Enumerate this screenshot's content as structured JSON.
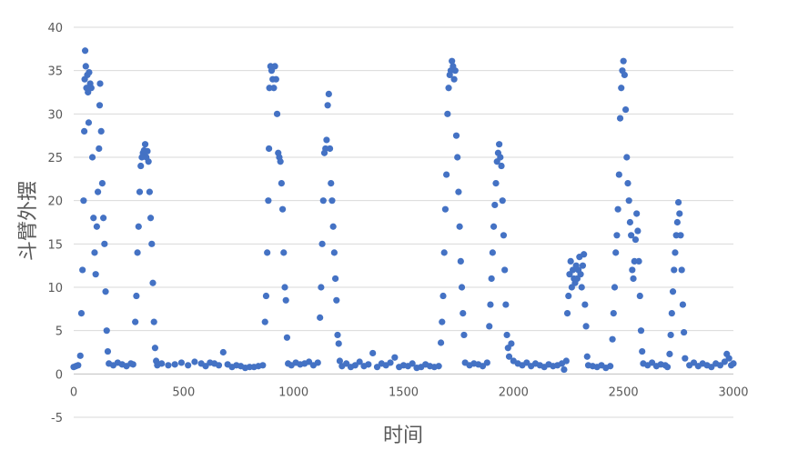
{
  "chart_data": {
    "type": "scatter",
    "title": "",
    "xlabel": "时间",
    "ylabel": "斗臂外摆",
    "xlim": [
      0,
      3000
    ],
    "ylim": [
      -5,
      40
    ],
    "x_ticks": [
      "0",
      "500",
      "1000",
      "1500",
      "2000",
      "2500",
      "3000"
    ],
    "y_ticks": [
      "-5",
      "0",
      "5",
      "10",
      "15",
      "20",
      "25",
      "30",
      "35",
      "40"
    ],
    "grid": true,
    "legend": "none",
    "marker_color": "#4472C4",
    "series": [
      {
        "points": [
          [
            0,
            0.8
          ],
          [
            10,
            0.9
          ],
          [
            20,
            1.0
          ],
          [
            30,
            2.1
          ],
          [
            35,
            7.0
          ],
          [
            40,
            12.0
          ],
          [
            45,
            20.0
          ],
          [
            48,
            28.0
          ],
          [
            50,
            34.0
          ],
          [
            52,
            37.3
          ],
          [
            55,
            35.5
          ],
          [
            58,
            33.0
          ],
          [
            62,
            34.5
          ],
          [
            65,
            32.5
          ],
          [
            68,
            29.0
          ],
          [
            70,
            34.8
          ],
          [
            75,
            33.5
          ],
          [
            80,
            33.0
          ],
          [
            85,
            25.0
          ],
          [
            90,
            18.0
          ],
          [
            95,
            14.0
          ],
          [
            100,
            11.5
          ],
          [
            105,
            17.0
          ],
          [
            110,
            21.0
          ],
          [
            115,
            26.0
          ],
          [
            118,
            31.0
          ],
          [
            120,
            33.5
          ],
          [
            125,
            28.0
          ],
          [
            130,
            22.0
          ],
          [
            135,
            18.0
          ],
          [
            140,
            15.0
          ],
          [
            145,
            9.5
          ],
          [
            150,
            5.0
          ],
          [
            155,
            2.6
          ],
          [
            160,
            1.2
          ],
          [
            180,
            1.0
          ],
          [
            200,
            1.3
          ],
          [
            220,
            1.1
          ],
          [
            240,
            0.9
          ],
          [
            260,
            1.2
          ],
          [
            270,
            1.1
          ],
          [
            280,
            6.0
          ],
          [
            285,
            9.0
          ],
          [
            290,
            14.0
          ],
          [
            295,
            17.0
          ],
          [
            300,
            21.0
          ],
          [
            305,
            24.0
          ],
          [
            310,
            25.0
          ],
          [
            315,
            25.5
          ],
          [
            320,
            25.8
          ],
          [
            325,
            26.5
          ],
          [
            330,
            25.0
          ],
          [
            335,
            25.7
          ],
          [
            340,
            24.5
          ],
          [
            345,
            21.0
          ],
          [
            350,
            18.0
          ],
          [
            355,
            15.0
          ],
          [
            360,
            10.5
          ],
          [
            365,
            6.0
          ],
          [
            370,
            3.0
          ],
          [
            375,
            1.5
          ],
          [
            380,
            1.0
          ],
          [
            400,
            1.2
          ],
          [
            430,
            1.0
          ],
          [
            460,
            1.1
          ],
          [
            490,
            1.3
          ],
          [
            520,
            1.0
          ],
          [
            550,
            1.4
          ],
          [
            580,
            1.2
          ],
          [
            600,
            0.9
          ],
          [
            620,
            1.3
          ],
          [
            640,
            1.2
          ],
          [
            660,
            1.0
          ],
          [
            680,
            2.5
          ],
          [
            700,
            1.1
          ],
          [
            720,
            0.8
          ],
          [
            740,
            1.0
          ],
          [
            760,
            0.9
          ],
          [
            780,
            0.7
          ],
          [
            800,
            0.8
          ],
          [
            820,
            0.8
          ],
          [
            840,
            0.9
          ],
          [
            860,
            1.0
          ],
          [
            870,
            6.0
          ],
          [
            875,
            9.0
          ],
          [
            880,
            14.0
          ],
          [
            885,
            20.0
          ],
          [
            888,
            26.0
          ],
          [
            890,
            33.0
          ],
          [
            895,
            35.5
          ],
          [
            900,
            35.0
          ],
          [
            905,
            34.0
          ],
          [
            910,
            33.0
          ],
          [
            915,
            35.5
          ],
          [
            920,
            34.0
          ],
          [
            925,
            30.0
          ],
          [
            930,
            25.5
          ],
          [
            935,
            25.0
          ],
          [
            940,
            24.5
          ],
          [
            945,
            22.0
          ],
          [
            950,
            19.0
          ],
          [
            955,
            14.0
          ],
          [
            960,
            10.0
          ],
          [
            965,
            8.5
          ],
          [
            970,
            4.2
          ],
          [
            975,
            1.2
          ],
          [
            990,
            1.0
          ],
          [
            1010,
            1.3
          ],
          [
            1030,
            1.1
          ],
          [
            1050,
            1.2
          ],
          [
            1070,
            1.4
          ],
          [
            1090,
            1.0
          ],
          [
            1110,
            1.3
          ],
          [
            1120,
            6.5
          ],
          [
            1125,
            10.0
          ],
          [
            1130,
            15.0
          ],
          [
            1135,
            20.0
          ],
          [
            1140,
            25.5
          ],
          [
            1145,
            26.0
          ],
          [
            1150,
            27.0
          ],
          [
            1155,
            31.0
          ],
          [
            1160,
            32.3
          ],
          [
            1165,
            26.0
          ],
          [
            1170,
            22.0
          ],
          [
            1175,
            20.0
          ],
          [
            1180,
            17.0
          ],
          [
            1185,
            14.0
          ],
          [
            1190,
            11.0
          ],
          [
            1195,
            8.5
          ],
          [
            1200,
            4.5
          ],
          [
            1205,
            3.5
          ],
          [
            1210,
            1.5
          ],
          [
            1220,
            0.9
          ],
          [
            1240,
            1.2
          ],
          [
            1260,
            0.8
          ],
          [
            1280,
            1.0
          ],
          [
            1300,
            1.4
          ],
          [
            1320,
            0.9
          ],
          [
            1340,
            1.1
          ],
          [
            1360,
            2.4
          ],
          [
            1380,
            0.8
          ],
          [
            1400,
            1.2
          ],
          [
            1420,
            1.0
          ],
          [
            1440,
            1.3
          ],
          [
            1460,
            1.9
          ],
          [
            1480,
            0.8
          ],
          [
            1500,
            1.0
          ],
          [
            1520,
            0.9
          ],
          [
            1540,
            1.2
          ],
          [
            1560,
            0.7
          ],
          [
            1580,
            0.8
          ],
          [
            1600,
            1.1
          ],
          [
            1620,
            0.9
          ],
          [
            1640,
            0.8
          ],
          [
            1660,
            0.9
          ],
          [
            1670,
            3.6
          ],
          [
            1675,
            6.0
          ],
          [
            1680,
            9.0
          ],
          [
            1685,
            14.0
          ],
          [
            1690,
            19.0
          ],
          [
            1695,
            23.0
          ],
          [
            1700,
            30.0
          ],
          [
            1705,
            33.0
          ],
          [
            1710,
            34.5
          ],
          [
            1715,
            35.0
          ],
          [
            1720,
            36.1
          ],
          [
            1725,
            35.5
          ],
          [
            1730,
            34.0
          ],
          [
            1735,
            35.0
          ],
          [
            1740,
            27.5
          ],
          [
            1745,
            25.0
          ],
          [
            1750,
            21.0
          ],
          [
            1755,
            17.0
          ],
          [
            1760,
            13.0
          ],
          [
            1765,
            10.0
          ],
          [
            1770,
            7.0
          ],
          [
            1775,
            4.5
          ],
          [
            1780,
            1.3
          ],
          [
            1800,
            1.0
          ],
          [
            1820,
            1.2
          ],
          [
            1840,
            1.1
          ],
          [
            1860,
            0.9
          ],
          [
            1880,
            1.3
          ],
          [
            1890,
            5.5
          ],
          [
            1895,
            8.0
          ],
          [
            1900,
            11.0
          ],
          [
            1905,
            14.0
          ],
          [
            1910,
            17.0
          ],
          [
            1915,
            19.5
          ],
          [
            1920,
            22.0
          ],
          [
            1925,
            24.5
          ],
          [
            1930,
            25.5
          ],
          [
            1935,
            26.5
          ],
          [
            1940,
            25.0
          ],
          [
            1945,
            24.0
          ],
          [
            1950,
            20.0
          ],
          [
            1955,
            16.0
          ],
          [
            1960,
            12.0
          ],
          [
            1965,
            8.0
          ],
          [
            1970,
            4.5
          ],
          [
            1975,
            3.0
          ],
          [
            1980,
            2.0
          ],
          [
            1990,
            3.5
          ],
          [
            2000,
            1.5
          ],
          [
            2020,
            1.2
          ],
          [
            2040,
            1.0
          ],
          [
            2060,
            1.3
          ],
          [
            2080,
            0.9
          ],
          [
            2100,
            1.2
          ],
          [
            2120,
            1.0
          ],
          [
            2140,
            0.8
          ],
          [
            2160,
            1.1
          ],
          [
            2180,
            0.9
          ],
          [
            2200,
            1.0
          ],
          [
            2220,
            1.2
          ],
          [
            2230,
            0.5
          ],
          [
            2240,
            1.5
          ],
          [
            2245,
            7.0
          ],
          [
            2250,
            9.0
          ],
          [
            2255,
            11.5
          ],
          [
            2260,
            13.0
          ],
          [
            2265,
            10.0
          ],
          [
            2270,
            12.0
          ],
          [
            2275,
            11.0
          ],
          [
            2280,
            10.5
          ],
          [
            2285,
            12.5
          ],
          [
            2290,
            11.0
          ],
          [
            2295,
            12.0
          ],
          [
            2300,
            13.5
          ],
          [
            2305,
            11.5
          ],
          [
            2310,
            10.0
          ],
          [
            2315,
            12.5
          ],
          [
            2320,
            13.8
          ],
          [
            2325,
            8.0
          ],
          [
            2330,
            5.5
          ],
          [
            2335,
            2.0
          ],
          [
            2340,
            1.0
          ],
          [
            2360,
            0.9
          ],
          [
            2380,
            0.8
          ],
          [
            2400,
            1.0
          ],
          [
            2420,
            0.7
          ],
          [
            2440,
            0.9
          ],
          [
            2450,
            4.0
          ],
          [
            2455,
            7.0
          ],
          [
            2460,
            10.0
          ],
          [
            2465,
            14.0
          ],
          [
            2470,
            16.0
          ],
          [
            2475,
            19.0
          ],
          [
            2480,
            23.0
          ],
          [
            2485,
            29.5
          ],
          [
            2490,
            33.0
          ],
          [
            2495,
            35.0
          ],
          [
            2500,
            36.1
          ],
          [
            2505,
            34.5
          ],
          [
            2510,
            30.5
          ],
          [
            2515,
            25.0
          ],
          [
            2520,
            22.0
          ],
          [
            2525,
            20.0
          ],
          [
            2530,
            17.5
          ],
          [
            2535,
            16.0
          ],
          [
            2540,
            12.0
          ],
          [
            2545,
            11.0
          ],
          [
            2550,
            13.0
          ],
          [
            2555,
            15.5
          ],
          [
            2560,
            18.5
          ],
          [
            2565,
            16.5
          ],
          [
            2570,
            13.0
          ],
          [
            2575,
            9.0
          ],
          [
            2580,
            5.0
          ],
          [
            2585,
            2.6
          ],
          [
            2590,
            1.2
          ],
          [
            2610,
            1.0
          ],
          [
            2630,
            1.3
          ],
          [
            2650,
            0.9
          ],
          [
            2670,
            1.1
          ],
          [
            2690,
            1.0
          ],
          [
            2700,
            0.8
          ],
          [
            2710,
            2.3
          ],
          [
            2715,
            4.5
          ],
          [
            2720,
            7.0
          ],
          [
            2725,
            9.5
          ],
          [
            2730,
            12.0
          ],
          [
            2735,
            14.0
          ],
          [
            2740,
            16.0
          ],
          [
            2745,
            17.5
          ],
          [
            2750,
            19.8
          ],
          [
            2755,
            18.5
          ],
          [
            2760,
            16.0
          ],
          [
            2765,
            12.0
          ],
          [
            2770,
            8.0
          ],
          [
            2775,
            4.8
          ],
          [
            2780,
            1.8
          ],
          [
            2800,
            1.0
          ],
          [
            2820,
            1.3
          ],
          [
            2840,
            0.9
          ],
          [
            2860,
            1.2
          ],
          [
            2880,
            1.0
          ],
          [
            2900,
            0.8
          ],
          [
            2920,
            1.2
          ],
          [
            2940,
            1.0
          ],
          [
            2960,
            1.4
          ],
          [
            2970,
            2.3
          ],
          [
            2980,
            1.8
          ],
          [
            2990,
            1.0
          ],
          [
            3000,
            1.2
          ]
        ]
      }
    ]
  }
}
